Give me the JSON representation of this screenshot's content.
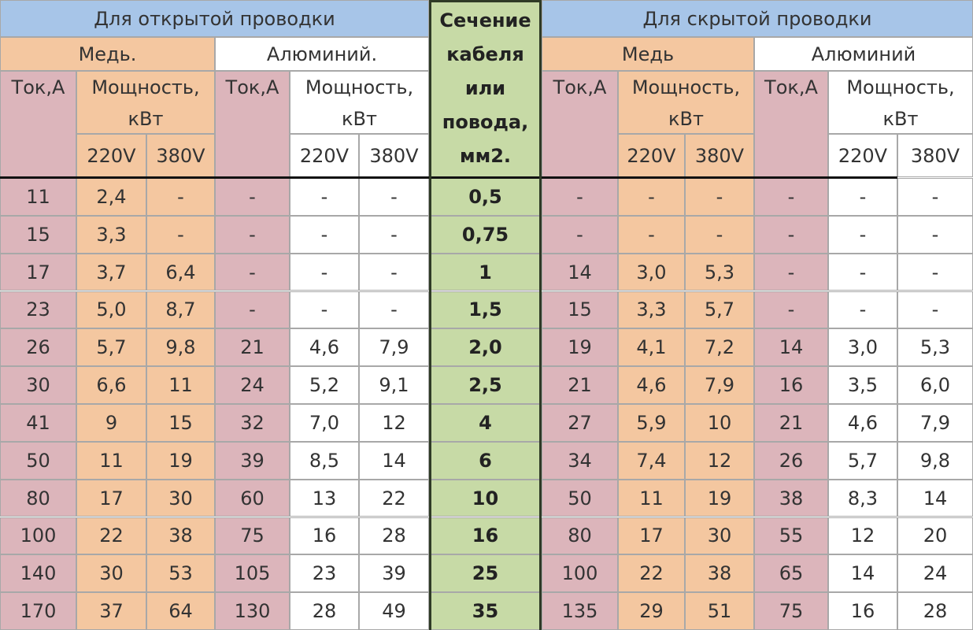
{
  "header": {
    "open_wiring": "Для открытой проводки",
    "hidden_wiring": "Для скрытой проводки",
    "section": [
      "Сечение",
      "кабеля",
      "или",
      "повода,",
      "мм2."
    ],
    "open_copper": "Медь.",
    "open_aluminum": "Алюминий.",
    "hidden_copper": "Медь",
    "hidden_aluminum": "Алюминий",
    "current": "Ток,А",
    "power": "Мощность, кВт",
    "v220": "220V",
    "v380": "380V"
  },
  "rows": [
    [
      "11",
      "2,4",
      "-",
      "-",
      "-",
      "-",
      "0,5",
      "-",
      "-",
      "-",
      "-",
      "-",
      "-"
    ],
    [
      "15",
      "3,3",
      "-",
      "-",
      "-",
      "-",
      "0,75",
      "-",
      "-",
      "-",
      "-",
      "-",
      "-"
    ],
    [
      "17",
      "3,7",
      "6,4",
      "-",
      "-",
      "-",
      "1",
      "14",
      "3,0",
      "5,3",
      "-",
      "-",
      "-"
    ],
    [
      "23",
      "5,0",
      "8,7",
      "-",
      "-",
      "-",
      "1,5",
      "15",
      "3,3",
      "5,7",
      "-",
      "-",
      "-"
    ],
    [
      "26",
      "5,7",
      "9,8",
      "21",
      "4,6",
      "7,9",
      "2,0",
      "19",
      "4,1",
      "7,2",
      "14",
      "3,0",
      "5,3"
    ],
    [
      "30",
      "6,6",
      "11",
      "24",
      "5,2",
      "9,1",
      "2,5",
      "21",
      "4,6",
      "7,9",
      "16",
      "3,5",
      "6,0"
    ],
    [
      "41",
      "9",
      "15",
      "32",
      "7,0",
      "12",
      "4",
      "27",
      "5,9",
      "10",
      "21",
      "4,6",
      "7,9"
    ],
    [
      "50",
      "11",
      "19",
      "39",
      "8,5",
      "14",
      "6",
      "34",
      "7,4",
      "12",
      "26",
      "5,7",
      "9,8"
    ],
    [
      "80",
      "17",
      "30",
      "60",
      "13",
      "22",
      "10",
      "50",
      "11",
      "19",
      "38",
      "8,3",
      "14"
    ],
    [
      "100",
      "22",
      "38",
      "75",
      "16",
      "28",
      "16",
      "80",
      "17",
      "30",
      "55",
      "12",
      "20"
    ],
    [
      "140",
      "30",
      "53",
      "105",
      "23",
      "39",
      "25",
      "100",
      "22",
      "38",
      "65",
      "14",
      "24"
    ],
    [
      "170",
      "37",
      "64",
      "130",
      "28",
      "49",
      "35",
      "135",
      "29",
      "51",
      "75",
      "16",
      "28"
    ]
  ]
}
